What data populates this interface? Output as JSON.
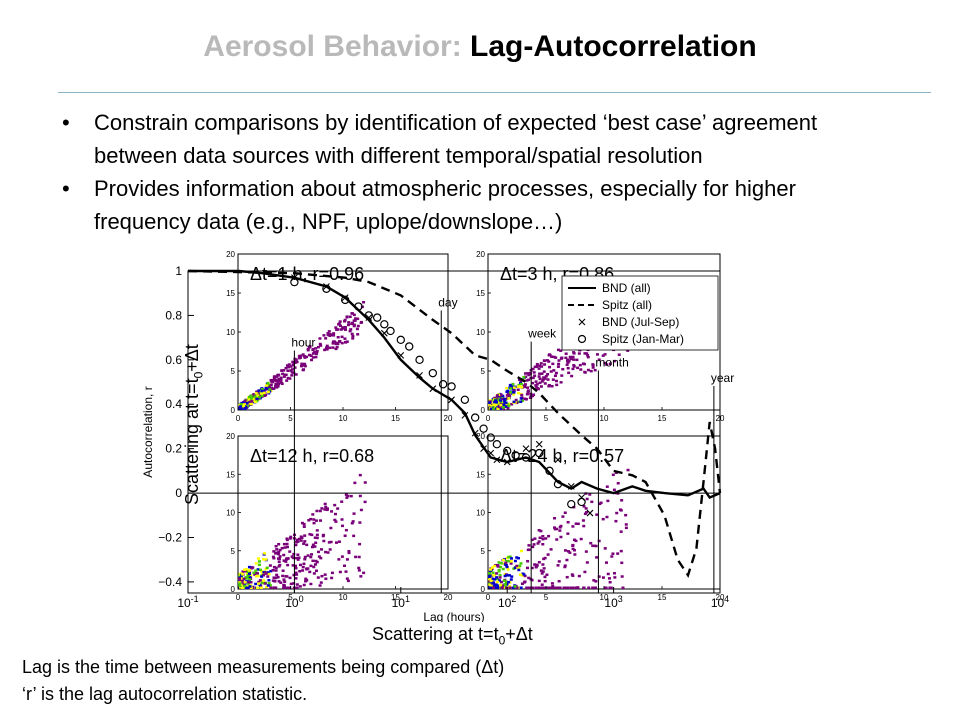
{
  "slide": {
    "title_prefix": "Aerosol Behavior:",
    "title_main": "Lag-Autocorrelation",
    "bullets": [
      {
        "line1": "Constrain comparisons by identification of expected ‘best case’ agreement",
        "line2": "between data sources with different temporal/spatial resolution"
      },
      {
        "line1": "Provides information about atmospheric processes, especially for higher",
        "line2": "frequency data (e.g., NPF, uplope/downslope…)"
      }
    ],
    "bullet_glyph": "•",
    "scatter_ylabel": {
      "pre": "Scattering at t=t",
      "sub": "0",
      "post": "+Δt"
    },
    "scatter_xlabel": {
      "pre": "Scattering at t=t",
      "sub": "0",
      "post": "+Δt"
    },
    "footer": {
      "line1": "Lag is the time between measurements being compared (Δt)",
      "line2": "‘r’ is the lag autocorrelation statistic."
    }
  },
  "chart_data": {
    "type": "line",
    "xlabel": "Lag (hours)",
    "ylabel": "Autocorrelation, r",
    "x_scale": "log",
    "xlim": [
      0.1,
      10000
    ],
    "ylim": [
      -0.45,
      1.0
    ],
    "x_ticks": [
      "10^-1",
      "10^0",
      "10^1",
      "10^2",
      "10^3",
      "10^4"
    ],
    "y_ticks": [
      -0.4,
      -0.2,
      0,
      0.2,
      0.4,
      0.6,
      0.8,
      1
    ],
    "legend_position": "top-right",
    "series": [
      {
        "name": "BND (all)",
        "style": "solid",
        "color": "#000000",
        "x": [
          0.1,
          0.3,
          0.5,
          1,
          2,
          3,
          5,
          7,
          10,
          15,
          20,
          30,
          40,
          50,
          70,
          100,
          150,
          200,
          300,
          400,
          500,
          700,
          1000,
          1500,
          2000,
          3000,
          5000,
          7000,
          8000,
          10000
        ],
        "y": [
          1.0,
          1.0,
          0.99,
          0.97,
          0.93,
          0.88,
          0.78,
          0.7,
          0.6,
          0.52,
          0.47,
          0.42,
          0.36,
          0.26,
          0.16,
          0.14,
          0.16,
          0.14,
          0.05,
          0.02,
          0.05,
          0.02,
          0.0,
          0.03,
          0.01,
          0.0,
          -0.01,
          0.02,
          -0.02,
          0.0
        ]
      },
      {
        "name": "Spitz (all)",
        "style": "dashed",
        "color": "#000000",
        "x": [
          0.1,
          1,
          3,
          5,
          10,
          20,
          30,
          50,
          70,
          100,
          150,
          200,
          300,
          500,
          700,
          1000,
          1500,
          2000,
          3000,
          4000,
          5000,
          6000,
          7000,
          8000,
          9000,
          10000
        ],
        "y": [
          1.0,
          0.99,
          0.97,
          0.95,
          0.89,
          0.78,
          0.72,
          0.62,
          0.6,
          0.55,
          0.5,
          0.45,
          0.36,
          0.26,
          0.2,
          0.1,
          0.08,
          0.05,
          -0.1,
          -0.3,
          -0.37,
          -0.25,
          0.05,
          0.32,
          0.2,
          0.0
        ]
      },
      {
        "name": "BND (Jul-Sep)",
        "style": "marker-x",
        "color": "#000000",
        "x": [
          1,
          2,
          3,
          5,
          7,
          10,
          15,
          20,
          30,
          40,
          50,
          60,
          70,
          80,
          100,
          150,
          200,
          300,
          400,
          500,
          600
        ],
        "y": [
          0.97,
          0.93,
          0.88,
          0.79,
          0.72,
          0.62,
          0.53,
          0.47,
          0.42,
          0.35,
          0.27,
          0.2,
          0.18,
          0.15,
          0.14,
          0.2,
          0.22,
          0.15,
          0.03,
          -0.02,
          -0.09
        ]
      },
      {
        "name": "Spitz (Jan-Mar)",
        "style": "marker-o",
        "color": "#000000",
        "x": [
          1,
          2,
          3,
          4,
          5,
          6,
          7,
          8,
          10,
          12,
          15,
          20,
          25,
          30,
          40,
          50,
          60,
          70,
          80,
          100,
          120,
          150,
          200,
          250,
          300,
          400,
          500
        ],
        "y": [
          0.95,
          0.92,
          0.87,
          0.84,
          0.8,
          0.79,
          0.76,
          0.73,
          0.69,
          0.66,
          0.6,
          0.54,
          0.49,
          0.48,
          0.42,
          0.34,
          0.29,
          0.25,
          0.22,
          0.19,
          0.17,
          0.16,
          0.18,
          0.1,
          0.04,
          -0.05,
          -0.04
        ]
      }
    ],
    "vlines": [
      {
        "label": "hour",
        "x": 1,
        "y_label": 0.66
      },
      {
        "label": "day",
        "x": 24,
        "y_label": 0.84
      },
      {
        "label": "week",
        "x": 168,
        "y_label": 0.7
      },
      {
        "label": "month",
        "x": 720,
        "y_label": 0.57
      },
      {
        "label": "year",
        "x": 8760,
        "y_label": 0.5
      }
    ],
    "insets": [
      {
        "label": "Δt=1 h, r=0.96",
        "x_ticks": [
          0,
          5,
          10,
          15,
          20
        ],
        "y_ticks": [
          0,
          5,
          10,
          15,
          20
        ],
        "spread": 1.2,
        "slope": 1.0
      },
      {
        "label": "Δt=3 h, r=0.86",
        "x_ticks": [
          0,
          5,
          10,
          15,
          20
        ],
        "y_ticks": [
          0,
          5,
          10,
          15,
          20
        ],
        "spread": 2.5,
        "slope": 0.9
      },
      {
        "label": "Δt=12 h, r=0.68",
        "x_ticks": [
          0,
          5,
          10,
          15,
          20
        ],
        "y_ticks": [
          0,
          5,
          10,
          15,
          20
        ],
        "spread": 4.5,
        "slope": 0.7
      },
      {
        "label": "Δt=24 h, r=0.57",
        "x_ticks": [
          0,
          5,
          10,
          15,
          20
        ],
        "y_ticks": [
          0,
          5,
          10,
          15,
          20
        ],
        "spread": 6.0,
        "slope": 0.6
      }
    ],
    "colors": {
      "scatter_low": "#7a007a",
      "scatter_mid": "#0000cc",
      "scatter_high": "#44cc00",
      "scatter_peak": "#ffff00"
    }
  }
}
